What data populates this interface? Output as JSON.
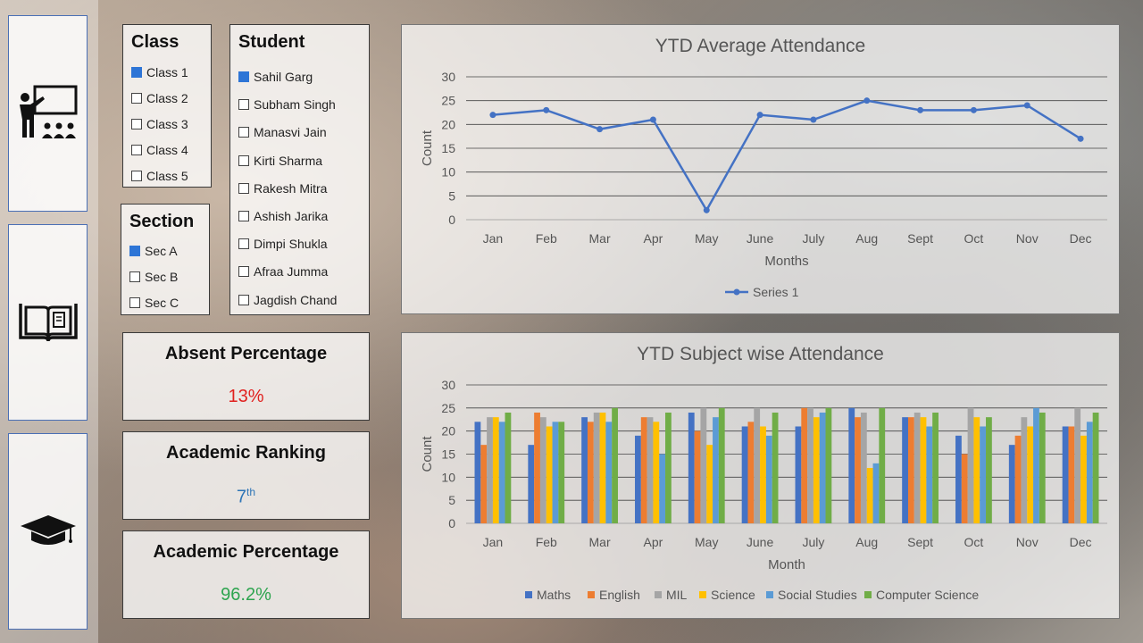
{
  "nav": {
    "items": [
      {
        "icon": "teacher-classroom-icon"
      },
      {
        "icon": "open-book-icon"
      },
      {
        "icon": "graduation-cap-icon"
      }
    ]
  },
  "class_filter": {
    "title": "Class",
    "items": [
      {
        "label": "Class 1",
        "checked": true
      },
      {
        "label": "Class 2",
        "checked": false
      },
      {
        "label": "Class 3",
        "checked": false
      },
      {
        "label": "Class 4",
        "checked": false
      },
      {
        "label": "Class 5",
        "checked": false
      }
    ]
  },
  "section_filter": {
    "title": "Section",
    "items": [
      {
        "label": "Sec A",
        "checked": true
      },
      {
        "label": "Sec B",
        "checked": false
      },
      {
        "label": "Sec C",
        "checked": false
      }
    ]
  },
  "student_filter": {
    "title": "Student",
    "items": [
      {
        "label": "Sahil Garg",
        "checked": true
      },
      {
        "label": "Subham Singh",
        "checked": false
      },
      {
        "label": "Manasvi Jain",
        "checked": false
      },
      {
        "label": "Kirti Sharma",
        "checked": false
      },
      {
        "label": "Rakesh Mitra",
        "checked": false
      },
      {
        "label": "Ashish Jarika",
        "checked": false
      },
      {
        "label": "Dimpi Shukla",
        "checked": false
      },
      {
        "label": "Afraa Jumma",
        "checked": false
      },
      {
        "label": "Jagdish Chand",
        "checked": false
      }
    ]
  },
  "kpis": {
    "absent": {
      "title": "Absent Percentage",
      "value": "13%",
      "color": "#e0201e"
    },
    "ranking": {
      "title": "Academic Ranking",
      "value": "7",
      "suffix": "th",
      "color": "#2e75b6"
    },
    "percentage": {
      "title": "Academic Percentage",
      "value": "96.2%",
      "color": "#2ea44f"
    }
  },
  "chart_data": [
    {
      "type": "line",
      "title": "YTD Average Attendance",
      "xlabel": "Months",
      "ylabel": "Count",
      "ylim": [
        0,
        30
      ],
      "yticks": [
        0,
        5,
        10,
        15,
        20,
        25,
        30
      ],
      "categories": [
        "Jan",
        "Feb",
        "Mar",
        "Apr",
        "May",
        "June",
        "July",
        "Aug",
        "Sept",
        "Oct",
        "Nov",
        "Dec"
      ],
      "series": [
        {
          "name": "Series 1",
          "color": "#4472c4",
          "values": [
            22,
            23,
            19,
            21,
            2,
            22,
            21,
            25,
            23,
            23,
            24,
            17
          ]
        }
      ],
      "legend": "bottom",
      "grid": true
    },
    {
      "type": "bar",
      "title": "YTD Subject wise Attendance",
      "xlabel": "Month",
      "ylabel": "Count",
      "ylim": [
        0,
        30
      ],
      "yticks": [
        0,
        5,
        10,
        15,
        20,
        25,
        30
      ],
      "categories": [
        "Jan",
        "Feb",
        "Mar",
        "Apr",
        "May",
        "June",
        "July",
        "Aug",
        "Sept",
        "Oct",
        "Nov",
        "Dec"
      ],
      "series": [
        {
          "name": "Maths",
          "color": "#4472c4",
          "values": [
            22,
            17,
            23,
            19,
            24,
            21,
            21,
            25,
            23,
            19,
            17,
            21
          ]
        },
        {
          "name": "English",
          "color": "#ed7d31",
          "values": [
            17,
            24,
            22,
            23,
            20,
            22,
            25,
            23,
            23,
            15,
            19,
            21
          ]
        },
        {
          "name": "MIL",
          "color": "#a5a5a5",
          "values": [
            23,
            23,
            24,
            23,
            25,
            25,
            25,
            24,
            24,
            25,
            23,
            25
          ]
        },
        {
          "name": "Science",
          "color": "#ffc000",
          "values": [
            23,
            21,
            24,
            22,
            17,
            21,
            23,
            12,
            23,
            23,
            21,
            19
          ]
        },
        {
          "name": "Social Studies",
          "color": "#5b9bd5",
          "values": [
            22,
            22,
            22,
            15,
            23,
            19,
            24,
            13,
            21,
            21,
            25,
            22
          ]
        },
        {
          "name": "Computer Science",
          "color": "#70ad47",
          "values": [
            24,
            22,
            25,
            24,
            25,
            24,
            25,
            25,
            24,
            23,
            24,
            24
          ]
        }
      ],
      "legend": "bottom",
      "grid": true
    }
  ]
}
